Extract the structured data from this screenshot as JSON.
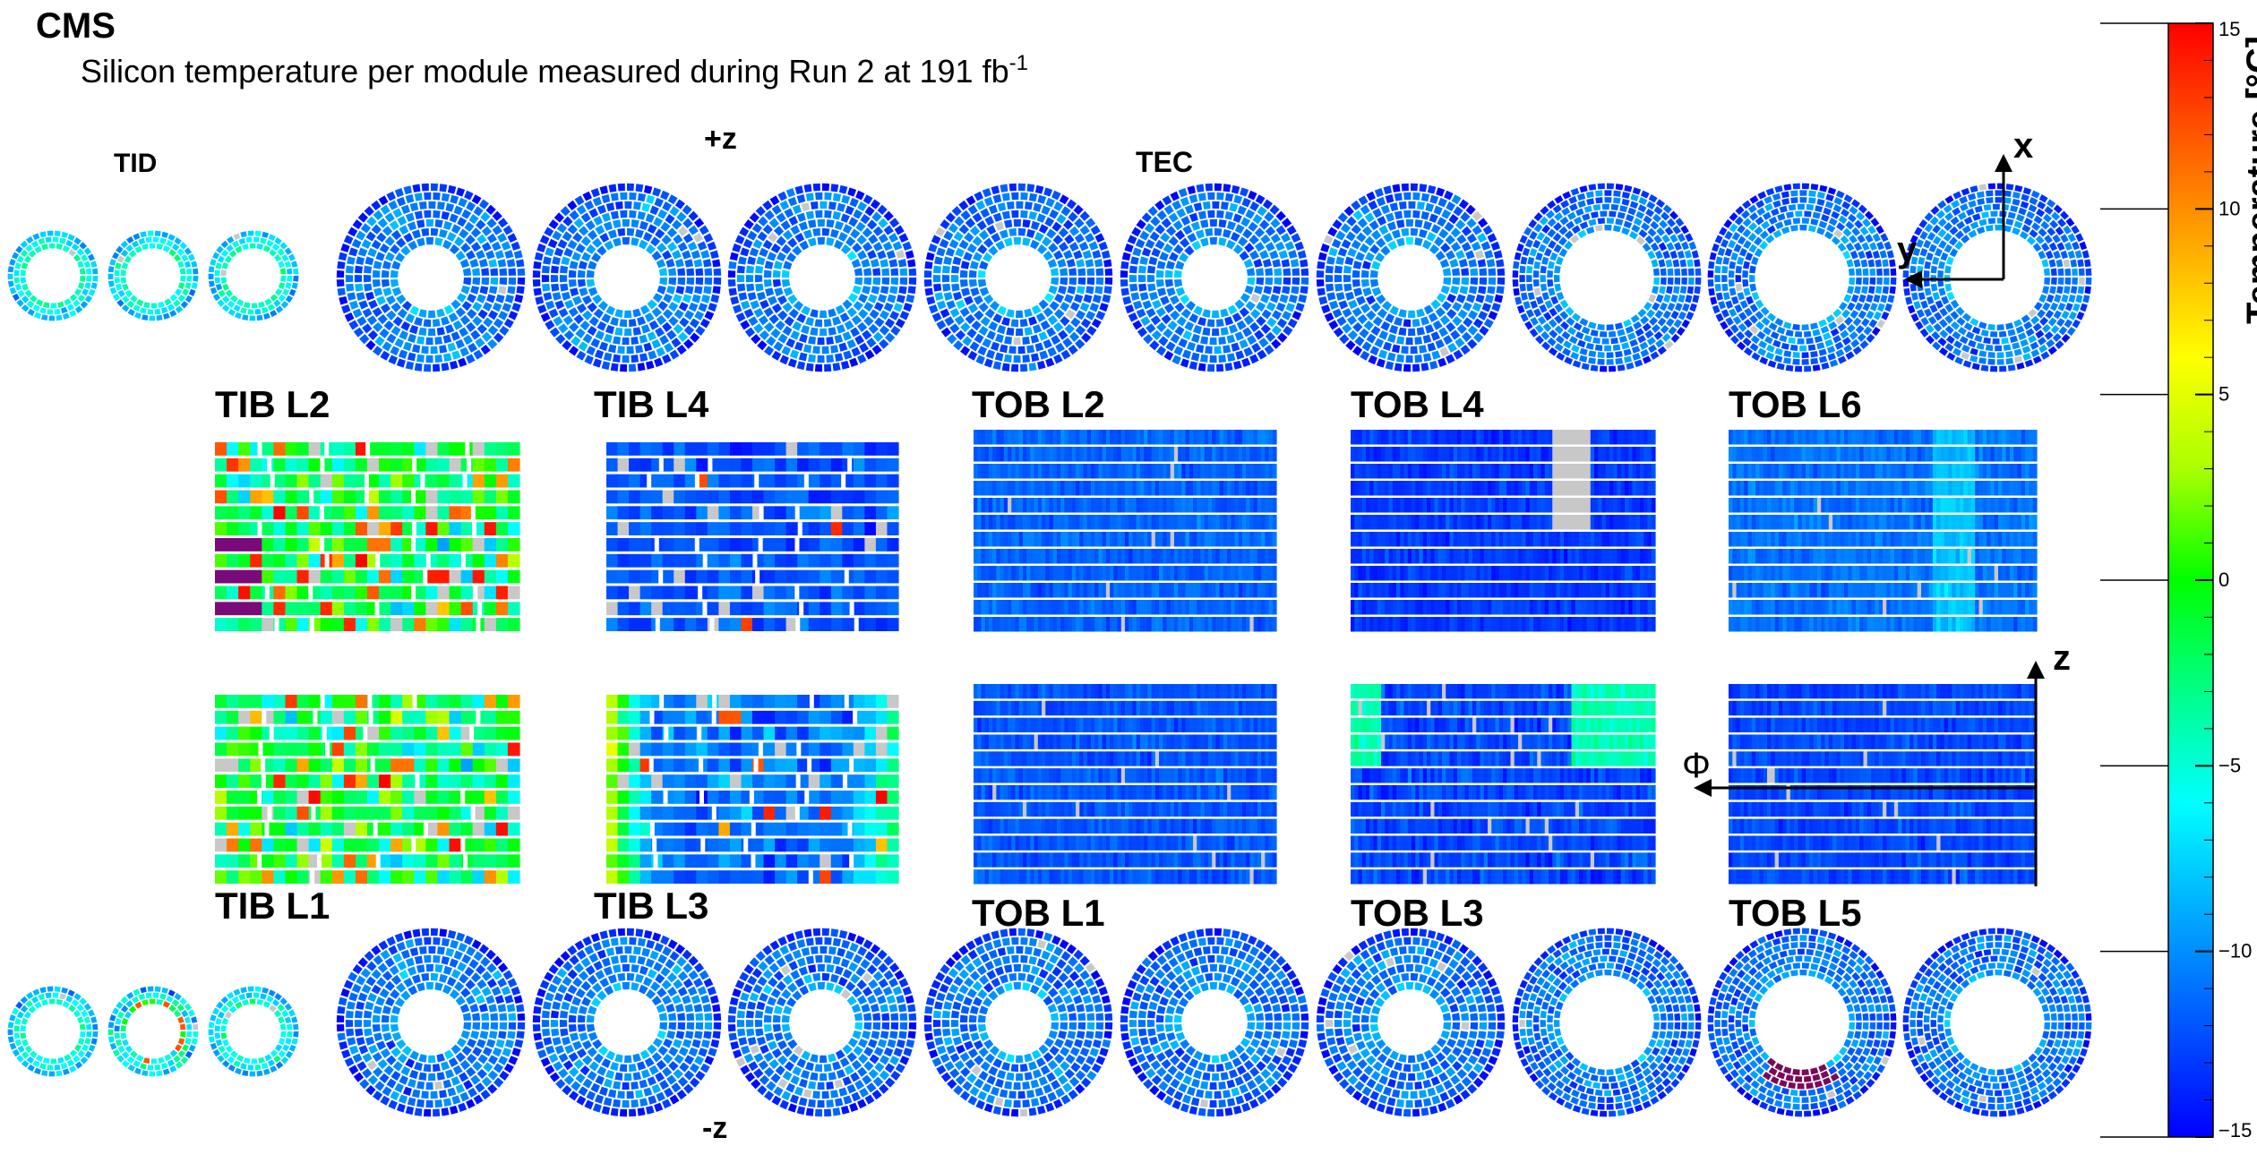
{
  "header": {
    "experiment": "CMS",
    "subtitle": "Silicon temperature per module measured during Run 2 at 191 fb",
    "superscript": "-1"
  },
  "section_labels": {
    "plus_z": "+z",
    "minus_z": "-z",
    "tid": "TID",
    "tec": "TEC"
  },
  "axes": {
    "x": "x",
    "y": "y",
    "z": "z",
    "phi": "Φ"
  },
  "colorbar": {
    "title": "Temperature [°C]",
    "min": -15,
    "max": 15,
    "ticks": [
      {
        "value": 15,
        "label": "15"
      },
      {
        "value": 10,
        "label": "10"
      },
      {
        "value": 5,
        "label": "5"
      },
      {
        "value": 0,
        "label": "0"
      },
      {
        "value": -5,
        "label": "−5"
      },
      {
        "value": -10,
        "label": "−10"
      },
      {
        "value": -15,
        "label": "−15"
      }
    ],
    "gradient": [
      "#0000ff",
      "#0055ff",
      "#00aaff",
      "#00ffff",
      "#00ff88",
      "#00ff00",
      "#aaff00",
      "#ffff00",
      "#ffaa00",
      "#ff5500",
      "#ff0000"
    ]
  },
  "chart_data": {
    "type": "heatmap",
    "title": "Silicon temperature per module measured during Run 2 at 191 fb-1",
    "colorbar_label": "Temperature [°C]",
    "zlim": [
      -15,
      15
    ],
    "barrel_layers": [
      {
        "name": "TIB L2",
        "rows": 12,
        "segments": 3,
        "typical_temp": -2,
        "spread": 8,
        "hot_spots": 0.14,
        "dead_fraction": 0.05,
        "purple_rows": [
          6,
          8,
          10
        ]
      },
      {
        "name": "TIB L4",
        "rows": 12,
        "segments": 4,
        "typical_temp": -12,
        "spread": 3,
        "hot_spots": 0.01,
        "dead_fraction": 0.06
      },
      {
        "name": "TOB L2",
        "rows": 12,
        "segments": 1,
        "typical_temp": -11.5,
        "spread": 2,
        "hot_spots": 0.0,
        "dead_fraction": 0.01
      },
      {
        "name": "TOB L4",
        "rows": 12,
        "segments": 1,
        "typical_temp": -13,
        "spread": 2,
        "hot_spots": 0.0,
        "dead_fraction": 0.0,
        "grey_block": [
          0.66,
          0.78,
          0,
          6
        ]
      },
      {
        "name": "TOB L6",
        "rows": 12,
        "segments": 1,
        "typical_temp": -11,
        "spread": 2,
        "hot_spots": 0.0,
        "dead_fraction": 0.005
      },
      {
        "name": "TIB L1",
        "rows": 12,
        "segments": 3,
        "typical_temp": -2,
        "spread": 8,
        "hot_spots": 0.12,
        "dead_fraction": 0.04
      },
      {
        "name": "TIB L3",
        "rows": 12,
        "segments": 3,
        "typical_temp": -11,
        "spread": 4,
        "hot_spots": 0.03,
        "dead_fraction": 0.04
      },
      {
        "name": "TOB L1",
        "rows": 12,
        "segments": 1,
        "typical_temp": -12,
        "spread": 2,
        "hot_spots": 0.0,
        "dead_fraction": 0.01
      },
      {
        "name": "TOB L3",
        "rows": 12,
        "segments": 1,
        "typical_temp": -12.5,
        "spread": 2.5,
        "hot_spots": 0.0,
        "dead_fraction": 0.02
      },
      {
        "name": "TOB L5",
        "rows": 12,
        "segments": 1,
        "typical_temp": -12.5,
        "spread": 2,
        "hot_spots": 0.0,
        "dead_fraction": 0.01
      }
    ],
    "endcap_discs": {
      "tid_plus_z": [
        {
          "disc": 1,
          "typical_temp": -6,
          "spread": 3
        },
        {
          "disc": 2,
          "typical_temp": -6,
          "spread": 3
        },
        {
          "disc": 3,
          "typical_temp": -6,
          "spread": 3
        }
      ],
      "tec_plus_z": [
        {
          "disc": 1,
          "typical_temp": -11,
          "spread": 3
        },
        {
          "disc": 2,
          "typical_temp": -11,
          "spread": 3
        },
        {
          "disc": 3,
          "typical_temp": -11,
          "spread": 3
        },
        {
          "disc": 4,
          "typical_temp": -11,
          "spread": 3
        },
        {
          "disc": 5,
          "typical_temp": -11,
          "spread": 3
        },
        {
          "disc": 6,
          "typical_temp": -11,
          "spread": 3
        },
        {
          "disc": 7,
          "typical_temp": -11,
          "spread": 3
        },
        {
          "disc": 8,
          "typical_temp": -11,
          "spread": 3
        },
        {
          "disc": 9,
          "typical_temp": -11,
          "spread": 3
        }
      ],
      "tid_minus_z": [
        {
          "disc": 1,
          "typical_temp": -6,
          "spread": 3
        },
        {
          "disc": 2,
          "typical_temp": -5,
          "spread": 6
        },
        {
          "disc": 3,
          "typical_temp": -6,
          "spread": 3
        }
      ],
      "tec_minus_z": [
        {
          "disc": 1,
          "typical_temp": -11,
          "spread": 3
        },
        {
          "disc": 2,
          "typical_temp": -11,
          "spread": 3
        },
        {
          "disc": 3,
          "typical_temp": -11,
          "spread": 3
        },
        {
          "disc": 4,
          "typical_temp": -11,
          "spread": 3
        },
        {
          "disc": 5,
          "typical_temp": -11,
          "spread": 3
        },
        {
          "disc": 6,
          "typical_temp": -11,
          "spread": 3
        },
        {
          "disc": 7,
          "typical_temp": -11,
          "spread": 3
        },
        {
          "disc": 8,
          "typical_temp": -11,
          "spread": 3
        },
        {
          "disc": 9,
          "typical_temp": -11,
          "spread": 3
        }
      ]
    }
  }
}
